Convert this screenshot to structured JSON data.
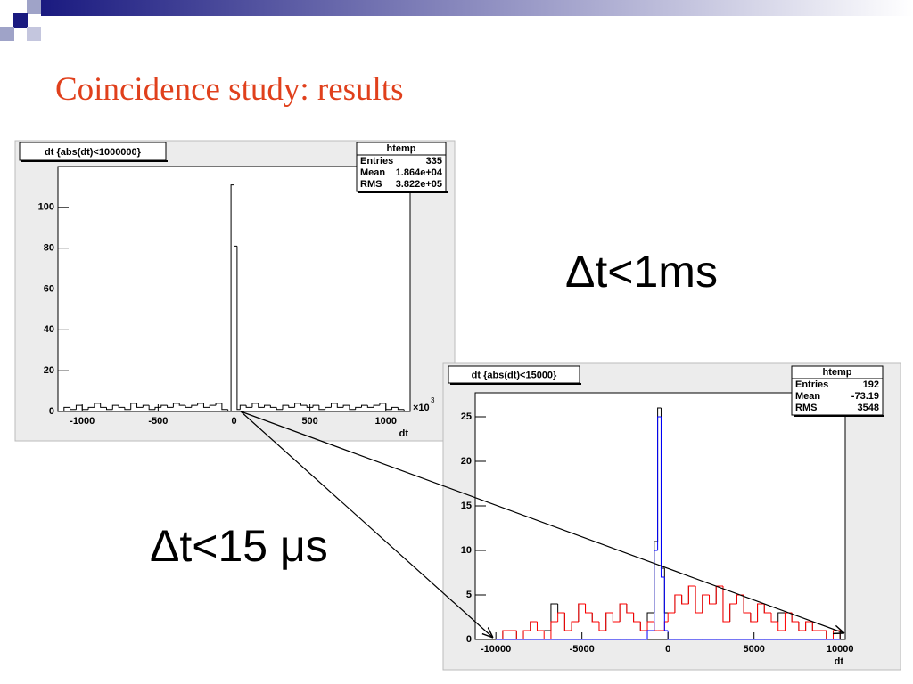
{
  "slide": {
    "title": "Coincidence study: results",
    "annotations": [
      "Δt<1ms",
      "Δt<15 μs"
    ]
  },
  "chart_data": [
    {
      "type": "histogram",
      "title": "dt {abs(dt)<1000000}",
      "xlabel": "dt",
      "x_multiplier": {
        "base": "×10",
        "exp": "3"
      },
      "stats": {
        "name": "htemp",
        "rows": [
          [
            "Entries",
            "335"
          ],
          [
            "Mean",
            "1.864e+04"
          ],
          [
            "RMS",
            "3.822e+05"
          ]
        ]
      },
      "bins": [
        -1160,
        -1120,
        -1080,
        -1040,
        -1000,
        -960,
        -920,
        -880,
        -840,
        -800,
        -760,
        -720,
        -680,
        -640,
        -600,
        -560,
        -520,
        -480,
        -440,
        -400,
        -360,
        -320,
        -280,
        -240,
        -200,
        -160,
        -120,
        -80,
        -40,
        -20,
        0,
        20,
        40,
        80,
        120,
        160,
        200,
        240,
        280,
        320,
        360,
        400,
        440,
        480,
        520,
        560,
        600,
        640,
        680,
        720,
        760,
        800,
        840,
        880,
        920,
        960,
        1000,
        1040,
        1080,
        1120,
        1160
      ],
      "values": [
        0,
        2,
        1,
        3,
        1,
        2,
        4,
        2,
        1,
        3,
        2,
        1,
        4,
        2,
        3,
        1,
        2,
        3,
        2,
        4,
        3,
        2,
        3,
        4,
        2,
        3,
        4,
        1,
        0,
        111,
        81,
        1,
        3,
        2,
        4,
        2,
        3,
        2,
        1,
        3,
        2,
        4,
        3,
        2,
        3,
        1,
        2,
        4,
        2,
        3,
        1,
        2,
        3,
        2,
        3,
        4,
        1,
        2,
        1,
        0
      ],
      "color": "#000000",
      "xlim": [
        -1160,
        1160
      ],
      "ylim": [
        0,
        120
      ],
      "xticks": [
        -1000,
        -500,
        0,
        500,
        1000
      ],
      "yticks": [
        0,
        20,
        40,
        60,
        80,
        100
      ]
    },
    {
      "type": "histogram",
      "title": "dt {abs(dt)<15000}",
      "xlabel": "dt",
      "stats": {
        "name": "htemp",
        "rows": [
          [
            "Entries",
            "192"
          ],
          [
            "Mean",
            "-73.19"
          ],
          [
            "RMS",
            "3548"
          ]
        ]
      },
      "bins": [
        -10000,
        -9600,
        -9200,
        -8800,
        -8400,
        -8000,
        -7600,
        -7200,
        -6800,
        -6400,
        -6000,
        -5600,
        -5200,
        -4800,
        -4400,
        -4000,
        -3600,
        -3200,
        -2800,
        -2400,
        -2000,
        -1600,
        -1200,
        -800,
        -600,
        -400,
        -200,
        0,
        400,
        800,
        1200,
        1600,
        2000,
        2400,
        2800,
        3200,
        3600,
        4000,
        4400,
        4800,
        5200,
        5600,
        6000,
        6400,
        6800,
        7200,
        7600,
        8000,
        8400,
        8800,
        9200,
        9600,
        10000
      ],
      "series": [
        {
          "color": "#000000",
          "values": [
            0,
            1,
            1,
            0,
            1,
            2,
            1,
            1,
            4,
            3,
            1,
            2,
            4,
            3,
            2,
            1,
            3,
            2,
            4,
            3,
            2,
            1,
            3,
            11,
            26,
            8,
            3,
            3,
            5,
            4,
            6,
            3,
            5,
            4,
            6,
            2,
            4,
            5,
            3,
            2,
            4,
            3,
            2,
            3,
            3,
            2,
            1,
            2,
            1,
            1,
            0,
            1
          ]
        },
        {
          "color": "#ff0000",
          "values": [
            0,
            1,
            1,
            0,
            1,
            2,
            1,
            0,
            2,
            3,
            1,
            2,
            4,
            3,
            2,
            1,
            3,
            2,
            4,
            3,
            2,
            1,
            2,
            1,
            1,
            1,
            2,
            3,
            5,
            4,
            6,
            3,
            5,
            4,
            6,
            2,
            4,
            5,
            3,
            2,
            4,
            3,
            2,
            1,
            3,
            2,
            1,
            2,
            1,
            1,
            0,
            1
          ]
        },
        {
          "color": "#0000ff",
          "values": [
            0,
            0,
            0,
            0,
            0,
            0,
            0,
            0,
            0,
            0,
            0,
            0,
            0,
            0,
            0,
            0,
            0,
            0,
            0,
            0,
            0,
            0,
            1,
            10,
            25,
            7,
            1,
            0,
            0,
            0,
            0,
            0,
            0,
            0,
            0,
            0,
            0,
            0,
            0,
            0,
            0,
            0,
            0,
            0,
            0,
            0,
            0,
            0,
            0,
            0,
            0,
            0
          ]
        }
      ],
      "xlim": [
        -11200,
        10300
      ],
      "ylim": [
        0,
        27.7
      ],
      "xticks": [
        -10000,
        -5000,
        0,
        5000,
        10000
      ],
      "yticks": [
        0,
        5,
        10,
        15,
        20,
        25
      ]
    }
  ]
}
